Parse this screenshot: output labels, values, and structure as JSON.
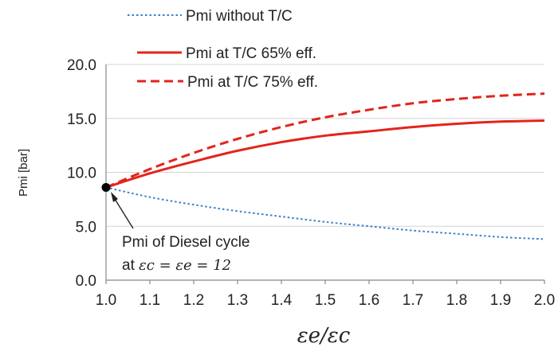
{
  "chart_data": {
    "type": "line",
    "title": "",
    "xlabel": "εe/εc",
    "ylabel": "Pmi [bar]",
    "xlim": [
      1.0,
      2.0
    ],
    "ylim": [
      0.0,
      20.0
    ],
    "x_ticks": [
      "1.0",
      "1.1",
      "1.2",
      "1.3",
      "1.4",
      "1.5",
      "1.6",
      "1.7",
      "1.8",
      "1.9",
      "2.0"
    ],
    "y_ticks": [
      "0.0",
      "5.0",
      "10.0",
      "15.0",
      "20.0"
    ],
    "grid": "horizontal",
    "legend_position": "top",
    "x": [
      1.0,
      1.1,
      1.2,
      1.3,
      1.4,
      1.5,
      1.6,
      1.7,
      1.8,
      1.9,
      2.0
    ],
    "series": [
      {
        "name": "Pmi without T/C",
        "style": "dotted",
        "color": "#3a7fc8",
        "values": [
          8.6,
          7.7,
          7.0,
          6.4,
          5.9,
          5.4,
          5.0,
          4.6,
          4.3,
          4.0,
          3.8
        ]
      },
      {
        "name": "Pmi at T/C 65% eff.",
        "style": "solid",
        "color": "#e3241b",
        "values": [
          8.6,
          9.9,
          11.0,
          12.0,
          12.8,
          13.4,
          13.8,
          14.2,
          14.5,
          14.7,
          14.8
        ]
      },
      {
        "name": "Pmi at T/C 75% eff.",
        "style": "dashed",
        "color": "#e3241b",
        "values": [
          8.6,
          10.3,
          11.8,
          13.1,
          14.2,
          15.1,
          15.8,
          16.4,
          16.8,
          17.1,
          17.3
        ]
      }
    ],
    "annotation": {
      "line1": "Pmi of Diesel cycle",
      "line2_prefix": "at ",
      "line2_math": "εc = εe = 12",
      "point": {
        "x": 1.0,
        "y": 8.6
      }
    }
  }
}
